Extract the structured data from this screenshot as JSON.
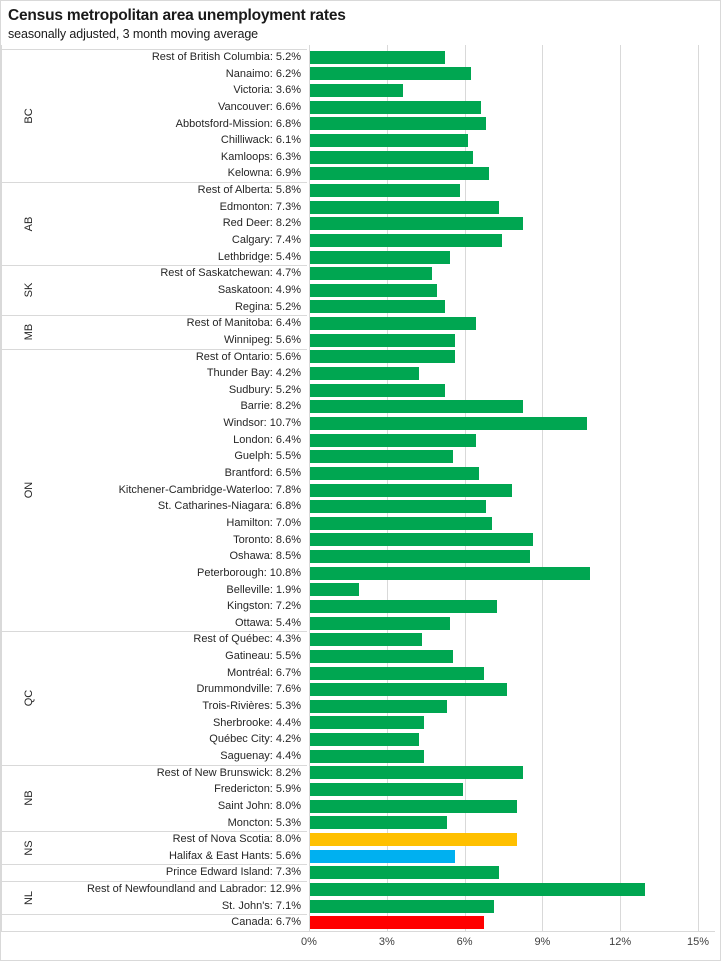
{
  "title": "Census metropolitan area unemployment rates",
  "subtitle": "seasonally adjusted, 3 month moving average",
  "colors": {
    "bar_default": "#00a651",
    "bar_orange": "#ffc000",
    "bar_blue": "#00b0f0",
    "bar_red": "#ff0000",
    "gridline": "#d9d9d9",
    "label_text": "#262626",
    "axis_text": "#404040"
  },
  "chart_data": {
    "type": "bar",
    "orientation": "horizontal",
    "title": "Census metropolitan area unemployment rates",
    "subtitle": "seasonally adjusted, 3 month moving average",
    "xlabel": "",
    "ylabel": "",
    "xlim": [
      0,
      15
    ],
    "x_tick_labels": [
      "0%",
      "3%",
      "6%",
      "9%",
      "12%",
      "15%"
    ],
    "grid": true,
    "value_unit": "%",
    "groups": [
      {
        "province": "BC",
        "items": [
          {
            "label": "Rest of British Columbia",
            "value": 5.2,
            "text": "Rest of British Columbia: 5.2%"
          },
          {
            "label": "Nanaimo",
            "value": 6.2,
            "text": "Nanaimo: 6.2%"
          },
          {
            "label": "Victoria",
            "value": 3.6,
            "text": "Victoria: 3.6%"
          },
          {
            "label": "Vancouver",
            "value": 6.6,
            "text": "Vancouver: 6.6%"
          },
          {
            "label": "Abbotsford-Mission",
            "value": 6.8,
            "text": "Abbotsford-Mission: 6.8%"
          },
          {
            "label": "Chilliwack",
            "value": 6.1,
            "text": "Chilliwack: 6.1%"
          },
          {
            "label": "Kamloops",
            "value": 6.3,
            "text": "Kamloops: 6.3%"
          },
          {
            "label": "Kelowna",
            "value": 6.9,
            "text": "Kelowna: 6.9%"
          }
        ]
      },
      {
        "province": "AB",
        "items": [
          {
            "label": "Rest of Alberta",
            "value": 5.8,
            "text": "Rest of Alberta: 5.8%"
          },
          {
            "label": "Edmonton",
            "value": 7.3,
            "text": "Edmonton: 7.3%"
          },
          {
            "label": "Red Deer",
            "value": 8.2,
            "text": "Red Deer: 8.2%"
          },
          {
            "label": "Calgary",
            "value": 7.4,
            "text": "Calgary: 7.4%"
          },
          {
            "label": "Lethbridge",
            "value": 5.4,
            "text": "Lethbridge: 5.4%"
          }
        ]
      },
      {
        "province": "SK",
        "items": [
          {
            "label": "Rest of Saskatchewan",
            "value": 4.7,
            "text": "Rest of Saskatchewan: 4.7%"
          },
          {
            "label": "Saskatoon",
            "value": 4.9,
            "text": "Saskatoon: 4.9%"
          },
          {
            "label": "Regina",
            "value": 5.2,
            "text": "Regina: 5.2%"
          }
        ]
      },
      {
        "province": "MB",
        "items": [
          {
            "label": "Rest of Manitoba",
            "value": 6.4,
            "text": "Rest of Manitoba: 6.4%"
          },
          {
            "label": "Winnipeg",
            "value": 5.6,
            "text": "Winnipeg: 5.6%"
          }
        ]
      },
      {
        "province": "ON",
        "items": [
          {
            "label": "Rest of Ontario",
            "value": 5.6,
            "text": "Rest of Ontario: 5.6%"
          },
          {
            "label": "Thunder Bay",
            "value": 4.2,
            "text": "Thunder Bay: 4.2%"
          },
          {
            "label": "Sudbury",
            "value": 5.2,
            "text": "Sudbury: 5.2%"
          },
          {
            "label": "Barrie",
            "value": 8.2,
            "text": "Barrie: 8.2%"
          },
          {
            "label": "Windsor",
            "value": 10.7,
            "text": "Windsor: 10.7%"
          },
          {
            "label": "London",
            "value": 6.4,
            "text": "London: 6.4%"
          },
          {
            "label": "Guelph",
            "value": 5.5,
            "text": "Guelph: 5.5%"
          },
          {
            "label": "Brantford",
            "value": 6.5,
            "text": "Brantford: 6.5%"
          },
          {
            "label": "Kitchener-Cambridge-Waterloo",
            "value": 7.8,
            "text": "Kitchener-Cambridge-Waterloo: 7.8%"
          },
          {
            "label": "St. Catharines-Niagara",
            "value": 6.8,
            "text": "St. Catharines-Niagara: 6.8%"
          },
          {
            "label": "Hamilton",
            "value": 7.0,
            "text": "Hamilton: 7.0%"
          },
          {
            "label": "Toronto",
            "value": 8.6,
            "text": "Toronto: 8.6%"
          },
          {
            "label": "Oshawa",
            "value": 8.5,
            "text": "Oshawa: 8.5%"
          },
          {
            "label": "Peterborough",
            "value": 10.8,
            "text": "Peterborough: 10.8%"
          },
          {
            "label": "Belleville",
            "value": 1.9,
            "text": "Belleville: 1.9%"
          },
          {
            "label": "Kingston",
            "value": 7.2,
            "text": "Kingston: 7.2%"
          },
          {
            "label": "Ottawa",
            "value": 5.4,
            "text": "Ottawa: 5.4%"
          }
        ]
      },
      {
        "province": "QC",
        "items": [
          {
            "label": "Rest of Québec",
            "value": 4.3,
            "text": "Rest of Québec: 4.3%"
          },
          {
            "label": "Gatineau",
            "value": 5.5,
            "text": "Gatineau: 5.5%"
          },
          {
            "label": "Montréal",
            "value": 6.7,
            "text": "Montréal: 6.7%"
          },
          {
            "label": "Drummondville",
            "value": 7.6,
            "text": "Drummondville: 7.6%"
          },
          {
            "label": "Trois-Rivières",
            "value": 5.3,
            "text": "Trois-Rivières: 5.3%"
          },
          {
            "label": "Sherbrooke",
            "value": 4.4,
            "text": "Sherbrooke: 4.4%"
          },
          {
            "label": "Québec City",
            "value": 4.2,
            "text": "Québec City: 4.2%"
          },
          {
            "label": "Saguenay",
            "value": 4.4,
            "text": "Saguenay: 4.4%"
          }
        ]
      },
      {
        "province": "NB",
        "items": [
          {
            "label": "Rest of New Brunswick",
            "value": 8.2,
            "text": "Rest of New Brunswick: 8.2%"
          },
          {
            "label": "Fredericton",
            "value": 5.9,
            "text": "Fredericton: 5.9%"
          },
          {
            "label": "Saint John",
            "value": 8.0,
            "text": "Saint John: 8.0%"
          },
          {
            "label": "Moncton",
            "value": 5.3,
            "text": "Moncton: 5.3%"
          }
        ]
      },
      {
        "province": "NS",
        "items": [
          {
            "label": "Rest of Nova Scotia",
            "value": 8.0,
            "text": "Rest of Nova Scotia: 8.0%",
            "color": "bar_orange"
          },
          {
            "label": "Halifax & East Hants",
            "value": 5.6,
            "text": "Halifax & East Hants: 5.6%",
            "color": "bar_blue"
          }
        ]
      },
      {
        "province": "",
        "items": [
          {
            "label": "Prince Edward Island",
            "value": 7.3,
            "text": "Prince Edward Island: 7.3%"
          }
        ]
      },
      {
        "province": "NL",
        "items": [
          {
            "label": "Rest of Newfoundland and Labrador",
            "value": 12.9,
            "text": "Rest of Newfoundland and Labrador: 12.9%"
          },
          {
            "label": "St. John's",
            "value": 7.1,
            "text": "St. John's: 7.1%"
          }
        ]
      },
      {
        "province": "",
        "items": [
          {
            "label": "Canada",
            "value": 6.7,
            "text": "Canada: 6.7%",
            "color": "bar_red"
          }
        ]
      }
    ]
  }
}
